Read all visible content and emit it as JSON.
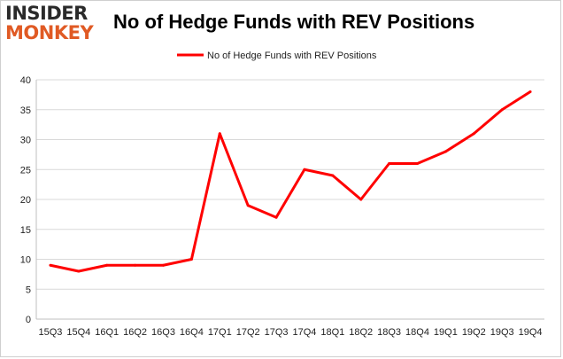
{
  "logo": {
    "line1": "INSIDER",
    "line2": "MONKEY"
  },
  "chart_data": {
    "type": "line",
    "title": "No of Hedge Funds with REV Positions",
    "categories": [
      "15Q3",
      "15Q4",
      "16Q1",
      "16Q2",
      "16Q3",
      "16Q4",
      "17Q1",
      "17Q2",
      "17Q3",
      "17Q4",
      "18Q1",
      "18Q2",
      "18Q3",
      "18Q4",
      "19Q1",
      "19Q2",
      "19Q3",
      "19Q4"
    ],
    "series": [
      {
        "name": "No of Hedge Funds with REV Positions",
        "color": "#ff0000",
        "values": [
          9,
          8,
          9,
          9,
          9,
          10,
          31,
          19,
          17,
          25,
          24,
          20,
          26,
          26,
          28,
          31,
          35,
          38
        ]
      }
    ],
    "ylim": [
      0,
      40
    ],
    "yticks": [
      0,
      5,
      10,
      15,
      20,
      25,
      30,
      35,
      40
    ],
    "grid": true,
    "legend": "top-center",
    "xlabel": "",
    "ylabel": ""
  }
}
